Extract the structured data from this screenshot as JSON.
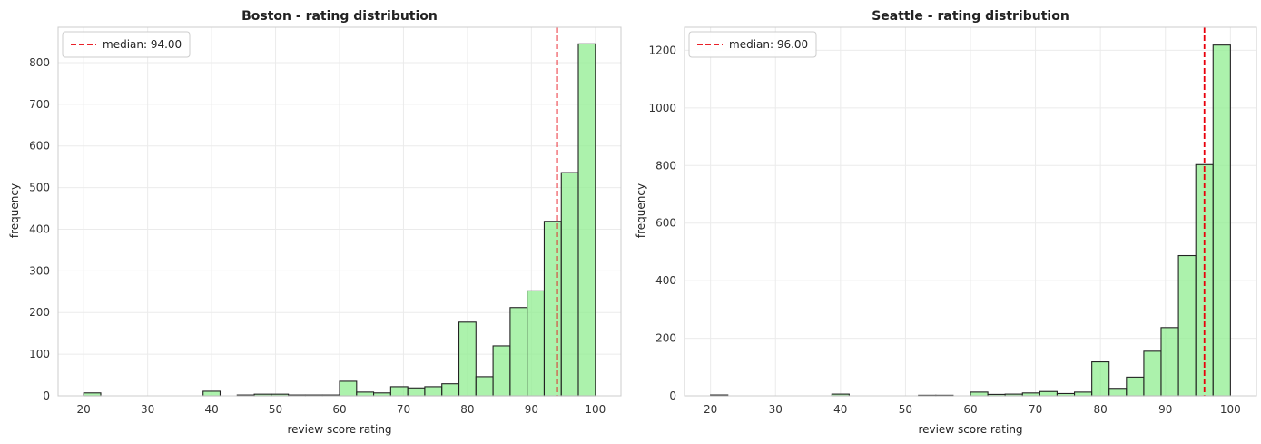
{
  "chart_data": [
    {
      "type": "bar",
      "title": "Boston - rating distribution",
      "xlabel": "review score rating",
      "ylabel": "frequency",
      "xlim": [
        16,
        104
      ],
      "ylim": [
        0,
        885
      ],
      "xticks": [
        20,
        30,
        40,
        50,
        60,
        70,
        80,
        90,
        100
      ],
      "yticks": [
        0,
        100,
        200,
        300,
        400,
        500,
        600,
        700,
        800
      ],
      "bin_edges": [
        20,
        22.67,
        25.33,
        28,
        30.67,
        33.33,
        36,
        38.67,
        41.33,
        44,
        46.67,
        49.33,
        52,
        54.67,
        57.33,
        60,
        62.67,
        65.33,
        68,
        70.67,
        73.33,
        76,
        78.67,
        81.33,
        84,
        86.67,
        89.33,
        92,
        94.67,
        97.33,
        100
      ],
      "values": [
        7,
        0,
        0,
        0,
        0,
        0,
        0,
        11,
        0,
        2,
        4,
        4,
        2,
        2,
        2,
        35,
        9,
        7,
        22,
        19,
        22,
        29,
        177,
        46,
        120,
        212,
        252,
        419,
        536,
        845
      ],
      "median": 94.0,
      "median_label": "median: 94.00",
      "legend_position": "upper-left",
      "grid": true,
      "bar_color": "#90ee90",
      "edge_color": "#222222",
      "median_color": "#e8000b"
    },
    {
      "type": "bar",
      "title": "Seattle - rating distribution",
      "xlabel": "review score rating",
      "ylabel": "frequency",
      "xlim": [
        16,
        104
      ],
      "ylim": [
        0,
        1280
      ],
      "xticks": [
        20,
        30,
        40,
        50,
        60,
        70,
        80,
        90,
        100
      ],
      "yticks": [
        0,
        200,
        400,
        600,
        800,
        1000,
        1200
      ],
      "bin_edges": [
        20,
        22.67,
        25.33,
        28,
        30.67,
        33.33,
        36,
        38.67,
        41.33,
        44,
        46.67,
        49.33,
        52,
        54.67,
        57.33,
        60,
        62.67,
        65.33,
        68,
        70.67,
        73.33,
        76,
        78.67,
        81.33,
        84,
        86.67,
        89.33,
        92,
        94.67,
        97.33,
        100
      ],
      "values": [
        3,
        0,
        0,
        0,
        0,
        0,
        0,
        6,
        0,
        0,
        0,
        0,
        2,
        2,
        0,
        13,
        5,
        6,
        10,
        15,
        8,
        13,
        118,
        26,
        65,
        155,
        237,
        487,
        803,
        1218
      ],
      "median": 96.0,
      "median_label": "median: 96.00",
      "legend_position": "upper-left",
      "grid": true,
      "bar_color": "#90ee90",
      "edge_color": "#222222",
      "median_color": "#e8000b"
    }
  ]
}
